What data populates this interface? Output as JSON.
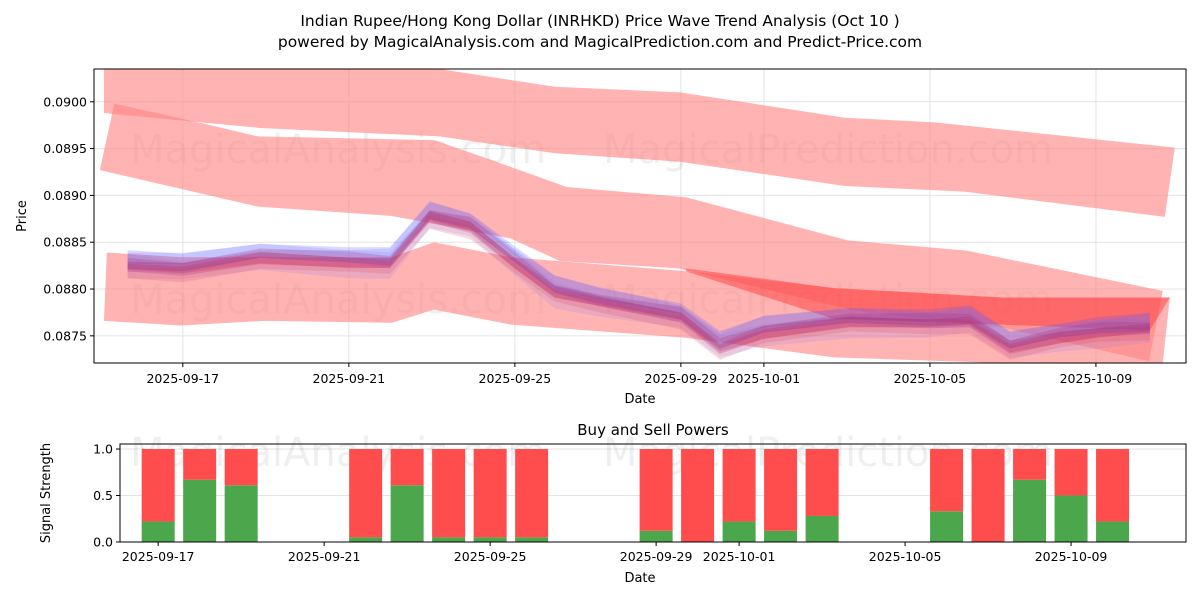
{
  "title_line1": "Indian Rupee/Hong Kong Dollar (INRHKD) Price Wave Trend Analysis (Oct 10 )",
  "title_line2": "powered by MagicalAnalysis.com and MagicalPrediction.com and Predict-Price.com",
  "watermarks": [
    "MagicalAnalysis.com",
    "MagicalPrediction.com"
  ],
  "chart_data": [
    {
      "type": "area",
      "title": "",
      "xlabel": "Date",
      "ylabel": "Price",
      "x_origin": "2025-09-17",
      "x_unit": "days since x_origin",
      "xlim": [
        -2.14,
        24.17
      ],
      "ylim": [
        0.08721,
        0.09035
      ],
      "grid": true,
      "xticks": [
        {
          "d": 0,
          "label": "2025-09-17"
        },
        {
          "d": 4,
          "label": "2025-09-21"
        },
        {
          "d": 8,
          "label": "2025-09-25"
        },
        {
          "d": 12,
          "label": "2025-09-29"
        },
        {
          "d": 14,
          "label": "2025-10-01"
        },
        {
          "d": 18,
          "label": "2025-10-05"
        },
        {
          "d": 22,
          "label": "2025-10-09"
        }
      ],
      "yticks": [
        {
          "v": 0.0875,
          "label": "0.0875"
        },
        {
          "v": 0.088,
          "label": "0.0880"
        },
        {
          "v": 0.0885,
          "label": "0.0885"
        },
        {
          "v": 0.089,
          "label": "0.0890"
        },
        {
          "v": 0.0895,
          "label": "0.0895"
        },
        {
          "v": 0.09,
          "label": "0.0900"
        }
      ],
      "trend_bands": [
        {
          "name": "upper-channel",
          "upper": [
            [
              -1.9,
              0.09035
            ],
            [
              6.19,
              0.09035
            ],
            [
              8.96,
              0.09016
            ],
            [
              11.98,
              0.0901
            ],
            [
              15.95,
              0.08983
            ],
            [
              18.12,
              0.08978
            ],
            [
              23.9,
              0.08951
            ]
          ],
          "lower": [
            [
              -1.9,
              0.08988
            ],
            [
              1.86,
              0.08972
            ],
            [
              6.19,
              0.08963
            ],
            [
              8.96,
              0.08945
            ],
            [
              11.98,
              0.08936
            ],
            [
              15.95,
              0.0891
            ],
            [
              18.84,
              0.08904
            ],
            [
              23.66,
              0.08877
            ]
          ]
        },
        {
          "name": "middle-channel",
          "upper": [
            [
              -1.65,
              0.08998
            ],
            [
              0.46,
              0.08977
            ],
            [
              1.81,
              0.08963
            ],
            [
              6.05,
              0.08959
            ],
            [
              7.23,
              0.08941
            ],
            [
              9.25,
              0.08909
            ],
            [
              12.12,
              0.08898
            ],
            [
              16.02,
              0.08852
            ],
            [
              18.89,
              0.08841
            ],
            [
              23.61,
              0.08798
            ]
          ],
          "lower": [
            [
              -2.0,
              0.08927
            ],
            [
              1.81,
              0.08888
            ],
            [
              5.04,
              0.08878
            ],
            [
              7.9,
              0.08854
            ],
            [
              9.08,
              0.0883
            ],
            [
              11.95,
              0.08822
            ],
            [
              16.19,
              0.08777
            ],
            [
              19.73,
              0.08759
            ],
            [
              23.28,
              0.08723
            ]
          ]
        },
        {
          "name": "lower-channel",
          "upper": [
            [
              -1.83,
              0.08839
            ],
            [
              -0.05,
              0.08834
            ],
            [
              5.04,
              0.08834
            ],
            [
              6.05,
              0.0885
            ],
            [
              7.9,
              0.08834
            ],
            [
              12.12,
              0.08819
            ],
            [
              15.69,
              0.08801
            ],
            [
              19.73,
              0.08791
            ],
            [
              23.78,
              0.08791
            ]
          ],
          "lower": [
            [
              -1.9,
              0.08766
            ],
            [
              -0.05,
              0.08761
            ],
            [
              1.98,
              0.08766
            ],
            [
              5.04,
              0.08764
            ],
            [
              6.05,
              0.08778
            ],
            [
              7.9,
              0.08762
            ],
            [
              12.12,
              0.08748
            ],
            [
              15.69,
              0.08727
            ],
            [
              19.73,
              0.08721
            ],
            [
              23.61,
              0.08721
            ]
          ]
        },
        {
          "name": "prediction-wedge",
          "upper": [
            [
              12.12,
              0.08822
            ],
            [
              15.69,
              0.08801
            ],
            [
              19.73,
              0.08791
            ],
            [
              23.78,
              0.08791
            ]
          ],
          "lower": [
            [
              12.12,
              0.08819
            ],
            [
              15.69,
              0.08768
            ],
            [
              19.73,
              0.08762
            ],
            [
              23.3,
              0.08756
            ]
          ]
        }
      ],
      "price_wave": {
        "x": [
          -1.33,
          0,
          1.86,
          4.0,
          4.99,
          5.95,
          6.92,
          8.0,
          8.96,
          10.05,
          12.0,
          12.94,
          14.0,
          16.07,
          18.0,
          18.96,
          19.93,
          21.13,
          22.1,
          23.3
        ],
        "y": [
          0.08826,
          0.08823,
          0.08836,
          0.08831,
          0.08829,
          0.08879,
          0.08869,
          0.08831,
          0.08799,
          0.08788,
          0.08772,
          0.0874,
          0.08756,
          0.08767,
          0.08765,
          0.08767,
          0.0874,
          0.08751,
          0.08756,
          0.08759
        ]
      }
    },
    {
      "type": "bar",
      "title": "Buy and Sell Powers",
      "xlabel": "Date",
      "ylabel": "Signal Strength",
      "x_origin": "2025-09-17",
      "xlim": [
        -0.92,
        24.77
      ],
      "ylim": [
        0,
        1.054
      ],
      "xticks": [
        {
          "d": 0,
          "label": "2025-09-17"
        },
        {
          "d": 4,
          "label": "2025-09-21"
        },
        {
          "d": 8,
          "label": "2025-09-25"
        },
        {
          "d": 12,
          "label": "2025-09-29"
        },
        {
          "d": 14,
          "label": "2025-10-01"
        },
        {
          "d": 18,
          "label": "2025-10-05"
        },
        {
          "d": 22,
          "label": "2025-10-09"
        }
      ],
      "yticks": [
        {
          "v": 0,
          "label": "0.0"
        },
        {
          "v": 0.5,
          "label": "0.5"
        },
        {
          "v": 1,
          "label": "1.0"
        }
      ],
      "categories": [
        "2025-09-17",
        "2025-09-18",
        "2025-09-19",
        "2025-09-22",
        "2025-09-23",
        "2025-09-24",
        "2025-09-25",
        "2025-09-26",
        "2025-09-29",
        "2025-09-30",
        "2025-10-01",
        "2025-10-02",
        "2025-10-03",
        "2025-10-06",
        "2025-10-07",
        "2025-10-08",
        "2025-10-09",
        "2025-10-10"
      ],
      "day_index": [
        0,
        1,
        2,
        5,
        6,
        7,
        8,
        9,
        12,
        13,
        14,
        15,
        16,
        19,
        20,
        21,
        22,
        23
      ],
      "series": [
        {
          "name": "Buy",
          "color": "#4ca64c",
          "values": [
            0.22,
            0.67,
            0.61,
            0.05,
            0.61,
            0.05,
            0.05,
            0.05,
            0.12,
            0.0,
            0.22,
            0.12,
            0.28,
            0.33,
            0.0,
            0.67,
            0.5,
            0.22
          ]
        },
        {
          "name": "Sell",
          "color": "#ff4c4c",
          "values": [
            0.78,
            0.33,
            0.39,
            0.95,
            0.39,
            0.95,
            0.95,
            0.95,
            0.88,
            1.0,
            0.78,
            0.88,
            0.72,
            0.67,
            1.0,
            0.33,
            0.5,
            0.78
          ]
        }
      ]
    }
  ]
}
